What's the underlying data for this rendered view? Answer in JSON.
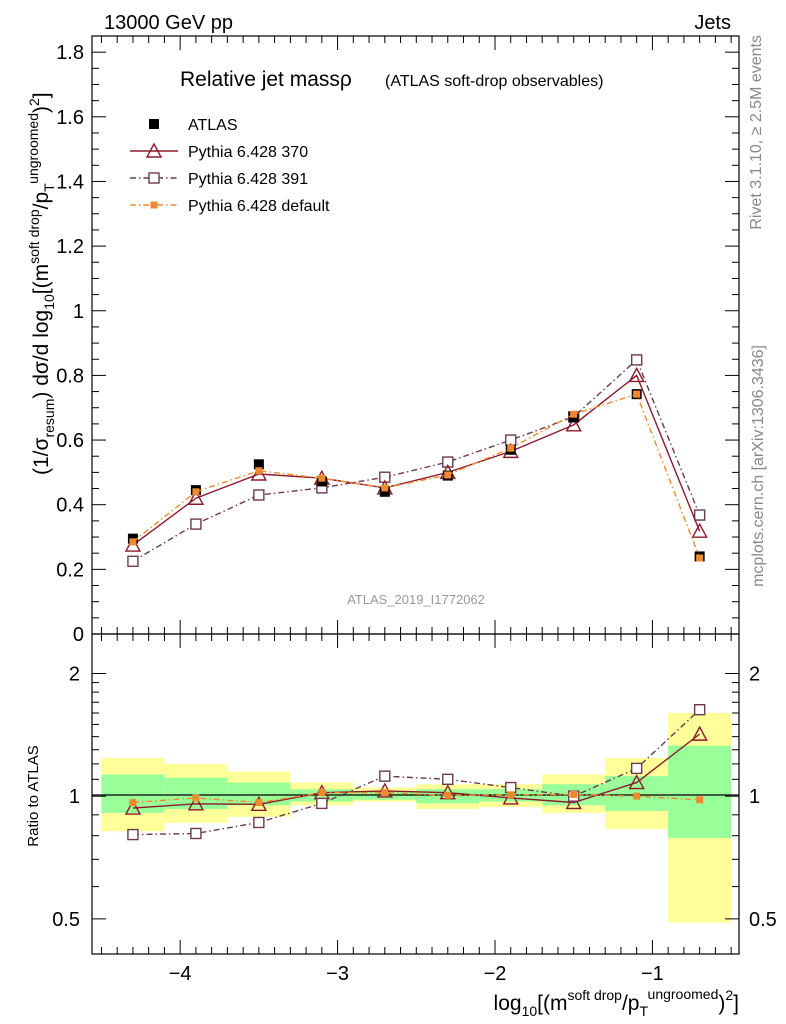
{
  "header": {
    "left": "13000 GeV pp",
    "right": "Jets"
  },
  "side": {
    "rivet": "Rivet 3.1.10, ≥ 2.5M events",
    "mcplots": "mcplots.cern.ch [arXiv:1306.3436]"
  },
  "colors": {
    "atlas": "#000000",
    "p370": "#8b1a2b",
    "p391": "#6b3a4e",
    "pdefault": "#f08a30",
    "band_inner": "#99ff99",
    "band_outer": "#ffff99"
  },
  "chart_data": [
    {
      "type": "scatter",
      "panel": "main",
      "title": "Relative jet massρ",
      "subtitle": "(ATLAS soft-drop observables)",
      "watermark": "ATLAS_2019_I1772062",
      "ylabel": "(1/σresum) dσ/d log10[(m soft drop/pT ungroomed)2]",
      "ylim": [
        0,
        1.85
      ],
      "yticks": [
        0,
        0.2,
        0.4,
        0.6,
        0.8,
        1,
        1.2,
        1.4,
        1.6,
        1.8
      ],
      "ytick_labels": [
        "0",
        "0.2",
        "0.4",
        "0.6",
        "0.8",
        "1",
        "1.2",
        "1.4",
        "1.6",
        "1.8"
      ],
      "x": [
        -4.3,
        -3.9,
        -3.5,
        -3.1,
        -2.7,
        -2.3,
        -1.9,
        -1.5,
        -1.1,
        -0.7
      ],
      "series": [
        {
          "name": "ATLAS",
          "key": "atlas",
          "values": [
            0.295,
            0.445,
            0.525,
            0.472,
            0.44,
            0.49,
            0.57,
            0.67,
            0.742,
            0.24
          ]
        },
        {
          "name": "Pythia 6.428 370",
          "key": "p370",
          "values": [
            0.275,
            0.42,
            0.495,
            0.482,
            0.452,
            0.5,
            0.565,
            0.647,
            0.8,
            0.318
          ]
        },
        {
          "name": "Pythia 6.428 391",
          "key": "p391",
          "values": [
            0.225,
            0.34,
            0.43,
            0.452,
            0.485,
            0.532,
            0.6,
            0.672,
            0.848,
            0.368
          ]
        },
        {
          "name": "Pythia 6.428 default",
          "key": "pdefault",
          "values": [
            0.285,
            0.44,
            0.505,
            0.482,
            0.452,
            0.492,
            0.575,
            0.68,
            0.742,
            0.235
          ]
        }
      ]
    },
    {
      "type": "scatter",
      "panel": "ratio",
      "ylabel": "Ratio to ATLAS",
      "xlabel": "log10[(m soft drop/pT ungroomed)2]",
      "ylim": [
        0.41,
        2.5
      ],
      "log_y": true,
      "yticks": [
        0.5,
        1,
        2
      ],
      "ytick_labels": [
        "0.5",
        "1",
        "2"
      ],
      "xlim": [
        -4.56,
        -0.45
      ],
      "xticks": [
        -4,
        -3,
        -2,
        -1
      ],
      "xtick_labels": [
        "−4",
        "−3",
        "−2",
        "−1"
      ],
      "bins": [
        {
          "lo": -4.5,
          "hi": -4.1,
          "inner": [
            0.91,
            1.13
          ],
          "outer": [
            0.82,
            1.24
          ]
        },
        {
          "lo": -4.1,
          "hi": -3.7,
          "inner": [
            0.93,
            1.11
          ],
          "outer": [
            0.86,
            1.2
          ]
        },
        {
          "lo": -3.7,
          "hi": -3.3,
          "inner": [
            0.95,
            1.08
          ],
          "outer": [
            0.89,
            1.15
          ]
        },
        {
          "lo": -3.3,
          "hi": -2.9,
          "inner": [
            0.97,
            1.04
          ],
          "outer": [
            0.95,
            1.08
          ]
        },
        {
          "lo": -2.9,
          "hi": -2.5,
          "inner": [
            0.98,
            1.03
          ],
          "outer": [
            0.97,
            1.05
          ]
        },
        {
          "lo": -2.5,
          "hi": -2.1,
          "inner": [
            0.96,
            1.04
          ],
          "outer": [
            0.93,
            1.07
          ]
        },
        {
          "lo": -2.1,
          "hi": -1.7,
          "inner": [
            0.97,
            1.04
          ],
          "outer": [
            0.94,
            1.07
          ]
        },
        {
          "lo": -1.7,
          "hi": -1.3,
          "inner": [
            0.95,
            1.07
          ],
          "outer": [
            0.91,
            1.13
          ]
        },
        {
          "lo": -1.3,
          "hi": -0.9,
          "inner": [
            0.92,
            1.12
          ],
          "outer": [
            0.83,
            1.24
          ]
        },
        {
          "lo": -0.9,
          "hi": -0.5,
          "inner": [
            0.79,
            1.33
          ],
          "outer": [
            0.49,
            1.6
          ]
        }
      ],
      "series": [
        {
          "name": "Pythia 6.428 370",
          "key": "p370",
          "values": [
            0.935,
            0.958,
            0.955,
            1.02,
            1.03,
            1.02,
            0.99,
            0.965,
            1.08,
            1.42
          ]
        },
        {
          "name": "Pythia 6.428 391",
          "key": "p391",
          "values": [
            0.805,
            0.81,
            0.862,
            0.96,
            1.12,
            1.1,
            1.05,
            1.0,
            1.17,
            1.63
          ]
        },
        {
          "name": "Pythia 6.428 default",
          "key": "pdefault",
          "values": [
            0.965,
            0.99,
            0.965,
            1.02,
            1.02,
            1.005,
            1.008,
            1.01,
            1.0,
            0.98
          ]
        }
      ]
    }
  ]
}
